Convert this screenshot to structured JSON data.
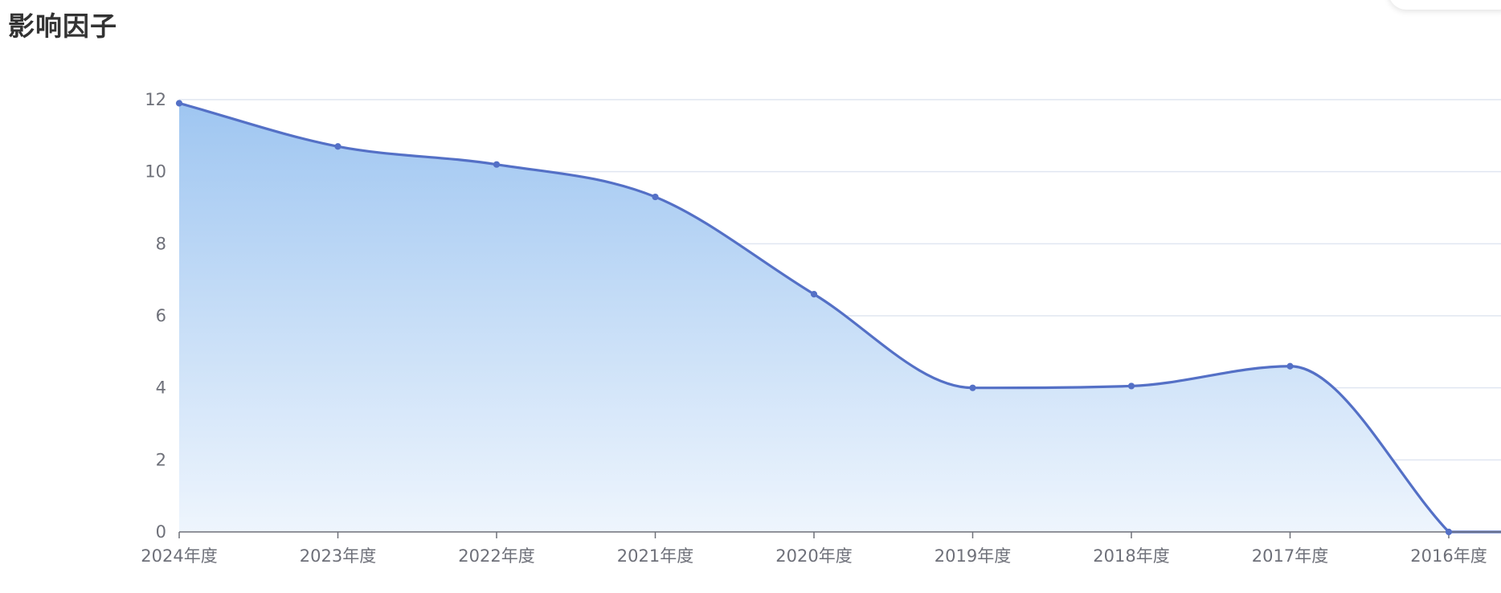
{
  "page": {
    "title": "影响因子"
  },
  "chart_data": {
    "type": "area",
    "title": "",
    "xlabel": "",
    "ylabel": "",
    "categories": [
      "2024年度",
      "2023年度",
      "2022年度",
      "2021年度",
      "2020年度",
      "2019年度",
      "2018年度",
      "2017年度",
      "2016年度"
    ],
    "series": [
      {
        "values": [
          11.9,
          10.7,
          10.2,
          9.3,
          6.6,
          4.0,
          4.05,
          4.6,
          0.0
        ]
      }
    ],
    "yticks": [
      0,
      2,
      4,
      6,
      8,
      10,
      12
    ],
    "ylim": [
      0,
      12
    ],
    "grid": true,
    "smooth": true,
    "legend": "none",
    "colors": {
      "line": "#5470c6",
      "area_top": "#9fc6f1",
      "area_bottom": "#eef5fd",
      "grid": "#e0e6f1",
      "axis": "#6e7079"
    }
  }
}
